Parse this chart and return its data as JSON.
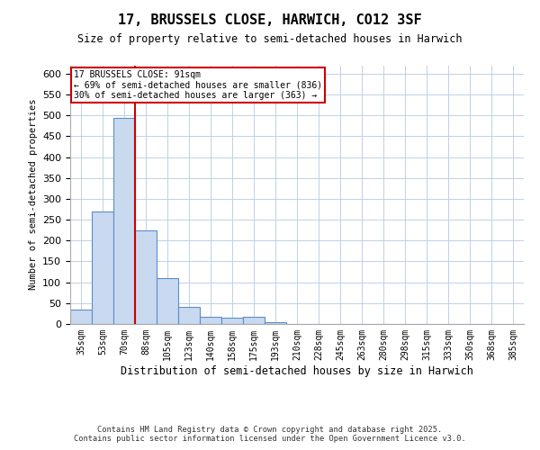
{
  "title": "17, BRUSSELS CLOSE, HARWICH, CO12 3SF",
  "subtitle": "Size of property relative to semi-detached houses in Harwich",
  "xlabel": "Distribution of semi-detached houses by size in Harwich",
  "ylabel": "Number of semi-detached properties",
  "footer_line1": "Contains HM Land Registry data © Crown copyright and database right 2025.",
  "footer_line2": "Contains public sector information licensed under the Open Government Licence v3.0.",
  "bin_labels": [
    "35sqm",
    "53sqm",
    "70sqm",
    "88sqm",
    "105sqm",
    "123sqm",
    "140sqm",
    "158sqm",
    "175sqm",
    "193sqm",
    "210sqm",
    "228sqm",
    "245sqm",
    "263sqm",
    "280sqm",
    "298sqm",
    "315sqm",
    "333sqm",
    "350sqm",
    "368sqm",
    "385sqm"
  ],
  "bin_values": [
    35,
    270,
    493,
    224,
    109,
    40,
    18,
    15,
    17,
    5,
    1,
    0,
    0,
    0,
    0,
    0,
    0,
    0,
    0,
    0,
    0
  ],
  "bar_color": "#c9d9f0",
  "bar_edge_color": "#5b8ec9",
  "property_line_x": 3,
  "annotation_text_line1": "17 BRUSSELS CLOSE: 91sqm",
  "annotation_text_line2": "← 69% of semi-detached houses are smaller (836)",
  "annotation_text_line3": "30% of semi-detached houses are larger (363) →",
  "annotation_box_color": "#ffffff",
  "annotation_box_edge_color": "#cc0000",
  "property_line_color": "#cc0000",
  "ylim": [
    0,
    620
  ],
  "yticks": [
    0,
    50,
    100,
    150,
    200,
    250,
    300,
    350,
    400,
    450,
    500,
    550,
    600
  ],
  "background_color": "#ffffff",
  "grid_color": "#c0d0e8"
}
